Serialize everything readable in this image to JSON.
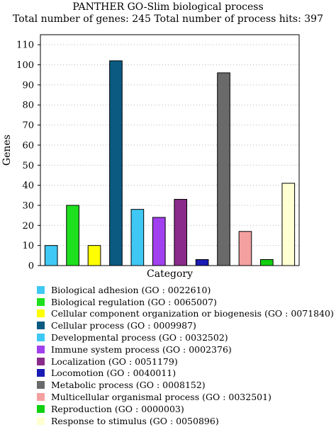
{
  "chart_data": {
    "type": "bar",
    "title": "PANTHER GO-Slim biological process",
    "subtitle": "Total number of genes: 245 Total number of process hits: 397",
    "xlabel": "Category",
    "ylabel": "Genes",
    "ylim": [
      0,
      115
    ],
    "yticks": [
      0,
      10,
      20,
      30,
      40,
      50,
      60,
      70,
      80,
      90,
      100,
      110
    ],
    "grid": true,
    "legend_position": "bottom",
    "categories": [
      "Biological adhesion (GO : 0022610)",
      "Biological regulation (GO : 0065007)",
      "Cellular component organization or biogenesis (GO : 0071840)",
      "Cellular process (GO : 0009987)",
      "Developmental process (GO : 0032502)",
      "Immune system process (GO : 0002376)",
      "Localization (GO : 0051179)",
      "Locomotion (GO : 0040011)",
      "Metabolic process (GO : 0008152)",
      "Multicellular organismal process (GO : 0032501)",
      "Reproduction (GO : 0000003)",
      "Response to stimulus (GO : 0050896)"
    ],
    "values": [
      10,
      30,
      10,
      102,
      28,
      24,
      33,
      3,
      96,
      17,
      3,
      41
    ],
    "colors": [
      "#3fc8f4",
      "#1ee01e",
      "#ffff00",
      "#0a5a82",
      "#3fc8f4",
      "#a040ee",
      "#8a2a8a",
      "#1a1ab4",
      "#6a6a6a",
      "#f4a0a0",
      "#10d010",
      "#ffffd2"
    ]
  }
}
